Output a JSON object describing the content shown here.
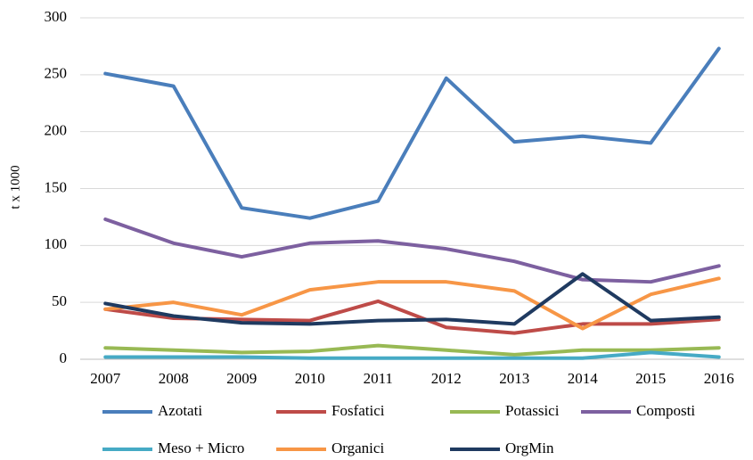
{
  "chart_data": {
    "type": "line",
    "ylabel": "t x 1000",
    "categories": [
      "2007",
      "2008",
      "2009",
      "2010",
      "2011",
      "2012",
      "2013",
      "2014",
      "2015",
      "2016"
    ],
    "series": [
      {
        "name": "Azotati",
        "color": "#4a7ebb",
        "values": [
          251,
          240,
          133,
          124,
          139,
          247,
          191,
          196,
          190,
          273
        ]
      },
      {
        "name": "Fosfatici",
        "color": "#be4b48",
        "values": [
          44,
          36,
          35,
          34,
          51,
          28,
          23,
          31,
          31,
          35
        ]
      },
      {
        "name": "Potassici",
        "color": "#98b954",
        "values": [
          10,
          8,
          6,
          7,
          12,
          8,
          4,
          8,
          8,
          10
        ]
      },
      {
        "name": "Composti",
        "color": "#7d60a0",
        "values": [
          123,
          102,
          90,
          102,
          104,
          97,
          86,
          70,
          68,
          82
        ]
      },
      {
        "name": "Meso + Micro",
        "color": "#46aac5",
        "values": [
          2,
          2,
          2,
          1,
          1,
          1,
          1,
          1,
          6,
          2
        ]
      },
      {
        "name": "Organici",
        "color": "#f79646",
        "values": [
          44,
          50,
          39,
          61,
          68,
          68,
          60,
          27,
          57,
          71
        ]
      },
      {
        "name": "OrgMin",
        "color": "#1f3a60",
        "values": [
          49,
          38,
          32,
          31,
          34,
          35,
          31,
          75,
          34,
          37
        ]
      }
    ],
    "ylim": [
      0,
      300
    ],
    "yticks": [
      0,
      50,
      100,
      150,
      200,
      250,
      300
    ],
    "grid": true,
    "legend": "bottom"
  }
}
